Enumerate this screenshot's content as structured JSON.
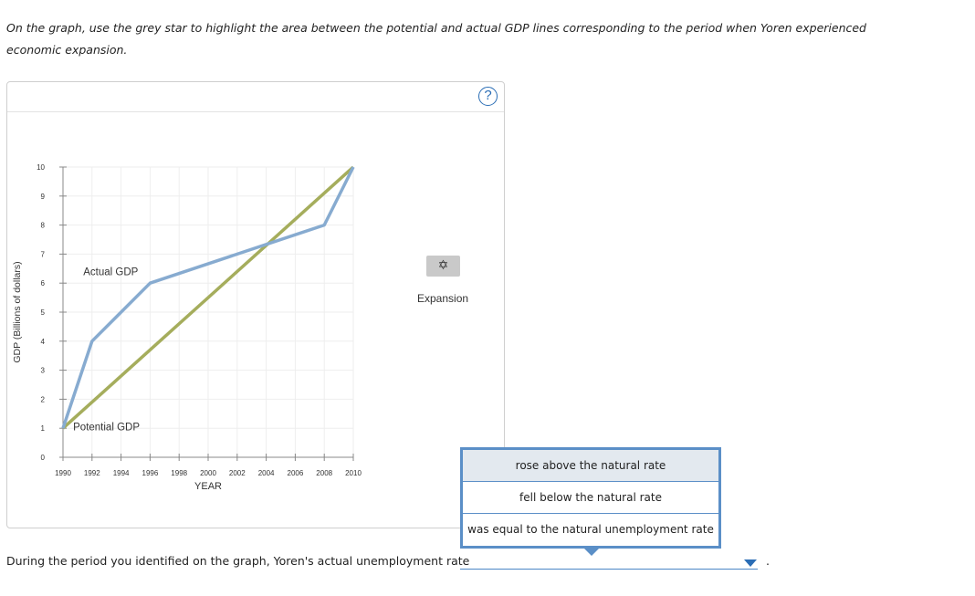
{
  "instruction": "On the graph, use the grey star to highlight the area between the potential and actual GDP lines corresponding to the period when Yoren experienced economic expansion.",
  "help_label": "?",
  "tool": {
    "icon": "star-icon",
    "symbol": "✡",
    "label": "Expansion"
  },
  "chart_data": {
    "type": "line",
    "xlabel": "YEAR",
    "ylabel": "GDP (Billions of dollars)",
    "xlim": [
      1990,
      2010
    ],
    "ylim": [
      0,
      10
    ],
    "x_ticks": [
      1990,
      1992,
      1994,
      1996,
      1998,
      2000,
      2002,
      2004,
      2006,
      2008,
      2010
    ],
    "y_ticks": [
      0,
      1,
      2,
      3,
      4,
      5,
      6,
      7,
      8,
      9,
      10
    ],
    "grid": true,
    "series": [
      {
        "name": "Potential GDP",
        "color": "#a5ad5c",
        "points": [
          [
            1990,
            1
          ],
          [
            2010,
            10
          ]
        ]
      },
      {
        "name": "Actual GDP",
        "color": "#87abd0",
        "points": [
          [
            1990,
            1
          ],
          [
            1992,
            4
          ],
          [
            1996,
            6
          ],
          [
            2008,
            8
          ],
          [
            2010,
            10
          ]
        ]
      }
    ],
    "annotations": [
      {
        "text": "Actual GDP",
        "series": "Actual GDP"
      },
      {
        "text": "Potential GDP",
        "series": "Potential GDP"
      }
    ]
  },
  "question": {
    "text": "During the period you identified on the graph, Yoren's actual unemployment rate",
    "selected": "",
    "options": [
      "rose above the natural rate",
      "fell below the natural rate",
      "was equal to the natural unemployment rate"
    ],
    "highlighted_index": 0,
    "suffix": "."
  }
}
